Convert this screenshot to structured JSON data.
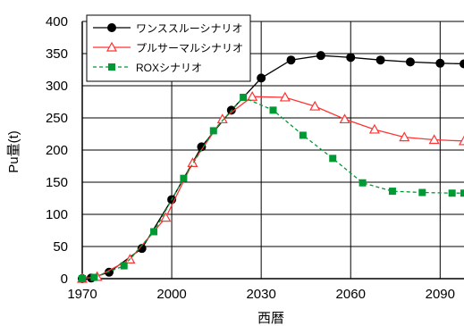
{
  "chart_data": {
    "type": "line",
    "xlabel": "西暦",
    "ylabel": "Pu量(t)",
    "xlim": [
      1970,
      2098
    ],
    "ylim": [
      0,
      400
    ],
    "x_ticks": [
      1970,
      2000,
      2030,
      2060,
      2090
    ],
    "y_ticks": [
      0,
      50,
      100,
      150,
      200,
      250,
      300,
      350,
      400
    ],
    "grid": {
      "x": true,
      "y": true
    },
    "legend_position": "top-left",
    "series": [
      {
        "name": "ワンススルーシナリオ",
        "color": "#000000",
        "line_style": "solid",
        "marker": "circle-filled",
        "x": [
          1970,
          1973,
          1979,
          1990,
          2000,
          2010,
          2020,
          2030,
          2040,
          2050,
          2060,
          2070,
          2080,
          2090,
          2098
        ],
        "y": [
          0,
          1,
          10,
          47,
          123,
          205,
          262,
          312,
          340,
          347,
          344,
          340,
          337,
          335,
          334
        ]
      },
      {
        "name": "プルサーマルシナリオ",
        "color": "#ff3333",
        "line_style": "solid",
        "marker": "triangle-open",
        "x": [
          1970,
          1975,
          1986,
          1998,
          2007,
          2017,
          2027,
          2038,
          2048,
          2058,
          2068,
          2078,
          2088,
          2098
        ],
        "y": [
          0,
          3,
          30,
          95,
          180,
          248,
          283,
          282,
          268,
          248,
          232,
          220,
          216,
          214
        ]
      },
      {
        "name": "ROXシナリオ",
        "color": "#009933",
        "line_style": "dashed",
        "marker": "square-filled",
        "x": [
          1970,
          1974,
          1984,
          1994,
          2004,
          2014,
          2024,
          2034,
          2044,
          2054,
          2064,
          2074,
          2084,
          2094,
          2098
        ],
        "y": [
          0,
          2,
          20,
          73,
          156,
          230,
          282,
          262,
          223,
          187,
          149,
          136,
          134,
          133,
          133
        ]
      }
    ]
  }
}
